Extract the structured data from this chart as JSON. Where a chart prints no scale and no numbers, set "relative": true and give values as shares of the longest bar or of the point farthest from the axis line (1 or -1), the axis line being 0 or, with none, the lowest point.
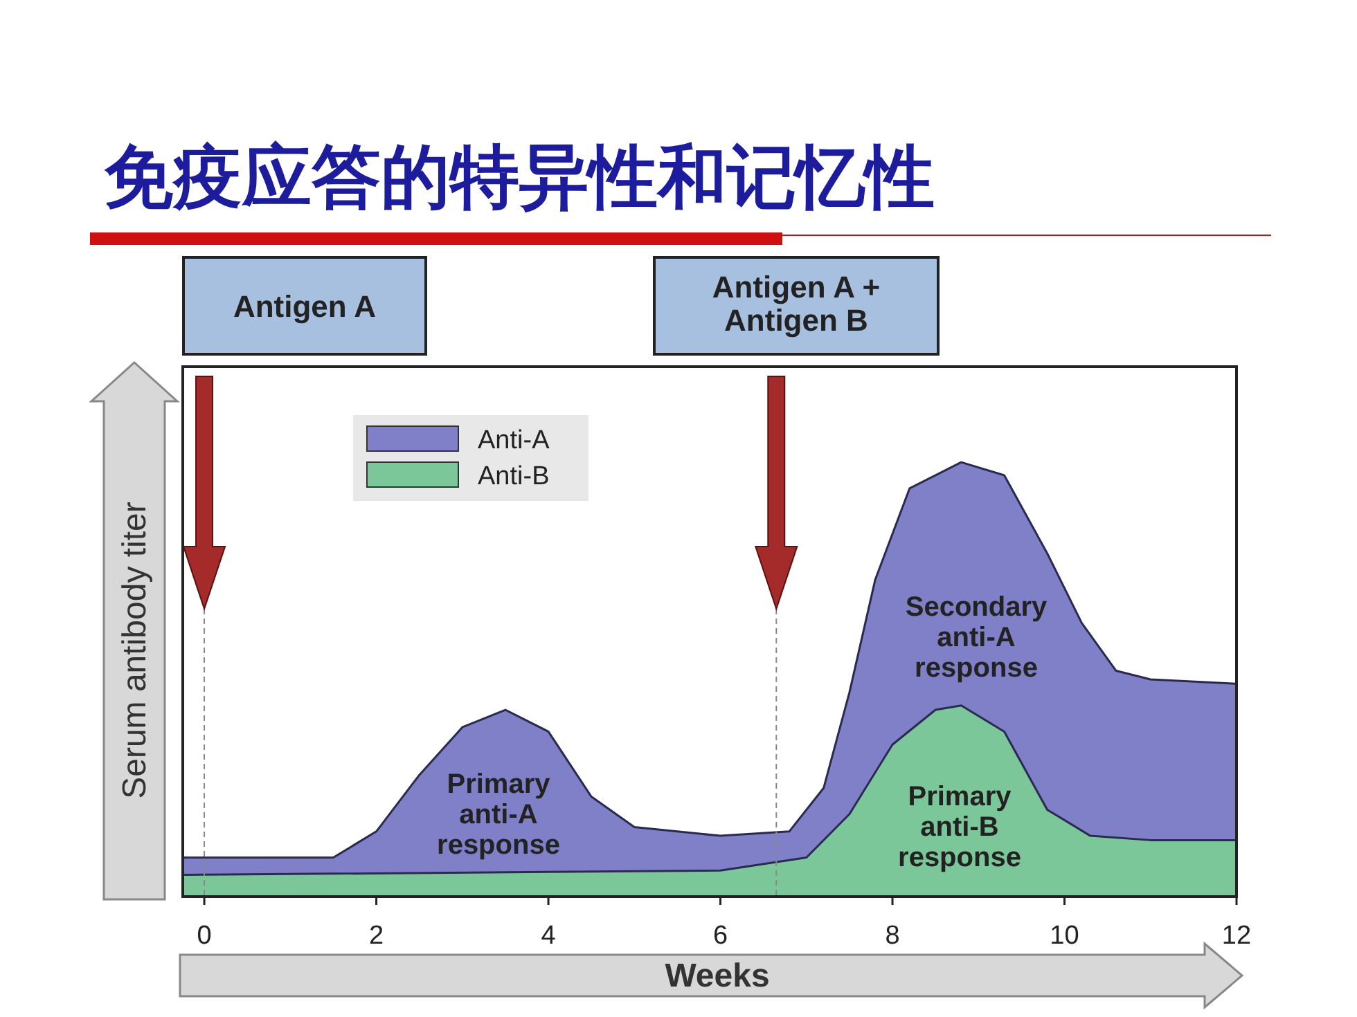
{
  "chart_data": {
    "type": "area",
    "title": "免疫应答的特异性和记忆性",
    "xlabel": "Weeks",
    "ylabel": "Serum antibody titer",
    "relative": true,
    "xlim": [
      -0.25,
      12
    ],
    "xticks": [
      0,
      2,
      4,
      6,
      8,
      10,
      12
    ],
    "legend": "top left",
    "series": [
      {
        "name": "Anti-A",
        "color": "#7f80c8",
        "x": [
          -0.25,
          1.5,
          2,
          2.5,
          3,
          3.5,
          4,
          4.5,
          5,
          6,
          6.8,
          7.2,
          7.5,
          7.8,
          8.2,
          8.8,
          9.3,
          9.8,
          10.2,
          10.6,
          11,
          12
        ],
        "values": [
          0.09,
          0.09,
          0.15,
          0.28,
          0.39,
          0.43,
          0.38,
          0.23,
          0.16,
          0.14,
          0.15,
          0.25,
          0.47,
          0.73,
          0.94,
          1,
          0.97,
          0.79,
          0.63,
          0.52,
          0.5,
          0.49
        ]
      },
      {
        "name": "Anti-B",
        "color": "#7cc79a",
        "x": [
          -0.25,
          6,
          7,
          7.5,
          8,
          8.5,
          8.8,
          9.3,
          9.8,
          10.3,
          11,
          12
        ],
        "values": [
          0.05,
          0.06,
          0.09,
          0.19,
          0.35,
          0.43,
          0.44,
          0.38,
          0.2,
          0.14,
          0.13,
          0.13
        ]
      }
    ],
    "ref_lines": [
      {
        "axis": "x",
        "value": 0,
        "line_style": "dashed"
      },
      {
        "axis": "x",
        "value": 6.65,
        "line_style": "dashed"
      }
    ],
    "annotations": [
      "Antigen A",
      "Antigen A +\nAntigen B",
      "Primary\nanti-A\nresponse",
      "Secondary\nanti-A\nresponse",
      "Primary\nanti-B\nresponse"
    ]
  }
}
